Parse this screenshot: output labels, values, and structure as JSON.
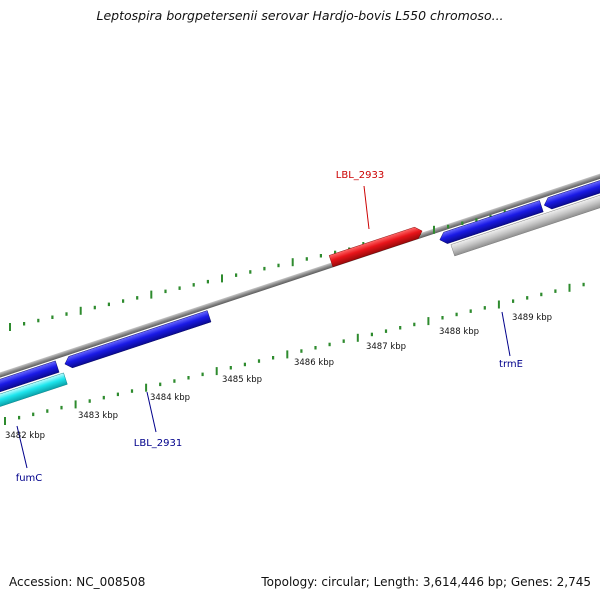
{
  "header": {
    "title": "Leptospira borgpetersenii serovar Hardjo-bovis L550 chromoso..."
  },
  "footer": {
    "accession": "Accession: NC_008508",
    "summary": "Topology: circular; Length: 3,614,446 bp; Genes: 2,745"
  },
  "scale": {
    "ticks": [
      {
        "label": "3482 kbp",
        "kbp": 3482
      },
      {
        "label": "3483 kbp",
        "kbp": 3483
      },
      {
        "label": "3484 kbp",
        "kbp": 3484
      },
      {
        "label": "3485 kbp",
        "kbp": 3485
      },
      {
        "label": "3486 kbp",
        "kbp": 3486
      },
      {
        "label": "3487 kbp",
        "kbp": 3487
      },
      {
        "label": "3488 kbp",
        "kbp": 3488
      },
      {
        "label": "3489 kbp",
        "kbp": 3489
      }
    ]
  },
  "genes": [
    {
      "label": "fumC",
      "color": "#00008b"
    },
    {
      "label": "LBL_2931",
      "color": "#00008b"
    },
    {
      "label": "LBL_2933",
      "color": "#cc0000"
    },
    {
      "label": "trmE",
      "color": "#00008b"
    }
  ],
  "colors": {
    "backbone": "#8c8c8c",
    "forward_feature": "#e8141a",
    "reverse_feature": "#1a1ae6",
    "rna_feature": "#1ee6ee",
    "other_feature": "#bdbdbd",
    "tick": "#2e8b2e"
  }
}
